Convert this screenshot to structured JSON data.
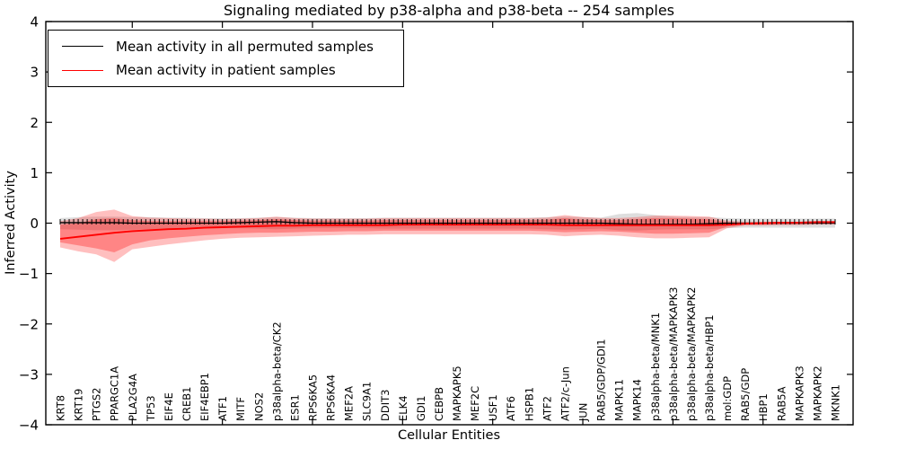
{
  "chart_data": {
    "type": "line",
    "title": "Signaling mediated by p38-alpha and p38-beta -- 254 samples",
    "xlabel": "Cellular Entities",
    "ylabel": "Inferred Activity",
    "ylim": [
      -4,
      4
    ],
    "yticks": [
      4,
      3,
      2,
      1,
      0,
      -1,
      -2,
      -3,
      -4
    ],
    "ytick_labels": [
      "4",
      "3",
      "2",
      "1",
      "0",
      "−1",
      "−2",
      "−3",
      "−4"
    ],
    "xticks_every": 5,
    "grid": false,
    "legend_position": "upper left",
    "categories": [
      "KRT8",
      "KRT19",
      "PTGS2",
      "PPARGC1A",
      "PLA2G4A",
      "TP53",
      "EIF4E",
      "CREB1",
      "EIF4EBP1",
      "ATF1",
      "MITF",
      "NOS2",
      "p38alpha-beta/CK2",
      "ESR1",
      "RPS6KA5",
      "RPS6KA4",
      "MEF2A",
      "SLC9A1",
      "DDIT3",
      "ELK4",
      "GDI1",
      "CEBPB",
      "MAPKAPK5",
      "MEF2C",
      "USF1",
      "ATF6",
      "HSPB1",
      "ATF2",
      "ATF2/c-Jun",
      "JUN",
      "RAB5/GDP/GDI1",
      "MAPK11",
      "MAPK14",
      "p38alpha-beta/MNK1",
      "p38alpha-beta/MAPKAPK3",
      "p38alpha-beta/MAPKAPK2",
      "p38alpha-beta/HBP1",
      "mol:GDP",
      "RAB5/GDP",
      "HBP1",
      "RAB5A",
      "MAPKAPK3",
      "MAPKAPK2",
      "MKNK1"
    ],
    "series": [
      {
        "name": "Mean activity in all permuted samples",
        "color": "#000000",
        "line_width": 1.3,
        "values": [
          0.01,
          0.01,
          0.01,
          0.01,
          0,
          0,
          0,
          0,
          0,
          0,
          0.01,
          0.02,
          0.03,
          0.01,
          0,
          0,
          0,
          0,
          0,
          0,
          0,
          0,
          0,
          0,
          0,
          0,
          0,
          0,
          0,
          0,
          0,
          -0.01,
          -0.02,
          -0.02,
          -0.02,
          -0.02,
          -0.01,
          0,
          0,
          0,
          0,
          0,
          0,
          0
        ]
      },
      {
        "name": "Mean activity in patient samples",
        "color": "#ff0000",
        "line_width": 1.9,
        "values": [
          -0.31,
          -0.27,
          -0.23,
          -0.19,
          -0.16,
          -0.14,
          -0.12,
          -0.11,
          -0.09,
          -0.08,
          -0.07,
          -0.06,
          -0.05,
          -0.05,
          -0.04,
          -0.04,
          -0.04,
          -0.04,
          -0.04,
          -0.03,
          -0.03,
          -0.03,
          -0.03,
          -0.03,
          -0.03,
          -0.03,
          -0.03,
          -0.03,
          -0.04,
          -0.04,
          -0.04,
          -0.04,
          -0.04,
          -0.04,
          -0.04,
          -0.04,
          -0.04,
          -0.03,
          -0.01,
          0,
          0.01,
          0.01,
          0.02,
          0.02
        ]
      }
    ],
    "bands": [
      {
        "name": "permuted-samples-range",
        "color": "rgba(0,0,0,0.13)",
        "top": [
          0.1,
          0.12,
          0.13,
          0.13,
          0.12,
          0.12,
          0.11,
          0.11,
          0.1,
          0.1,
          0.1,
          0.11,
          0.12,
          0.11,
          0.1,
          0.1,
          0.1,
          0.1,
          0.11,
          0.11,
          0.11,
          0.11,
          0.11,
          0.11,
          0.11,
          0.11,
          0.11,
          0.12,
          0.13,
          0.12,
          0.11,
          0.18,
          0.2,
          0.16,
          0.13,
          0.12,
          0.12,
          0.1,
          0.09,
          0.09,
          0.09,
          0.09,
          0.09,
          0.09
        ],
        "bottom": [
          -0.12,
          -0.13,
          -0.14,
          -0.14,
          -0.13,
          -0.12,
          -0.11,
          -0.11,
          -0.1,
          -0.1,
          -0.1,
          -0.11,
          -0.12,
          -0.11,
          -0.1,
          -0.1,
          -0.1,
          -0.1,
          -0.11,
          -0.11,
          -0.11,
          -0.11,
          -0.11,
          -0.11,
          -0.11,
          -0.11,
          -0.11,
          -0.12,
          -0.13,
          -0.12,
          -0.11,
          -0.14,
          -0.15,
          -0.13,
          -0.12,
          -0.12,
          -0.12,
          -0.1,
          -0.09,
          -0.09,
          -0.09,
          -0.09,
          -0.09,
          -0.09
        ]
      },
      {
        "name": "patient-samples-outer-band",
        "color": "rgba(255,0,0,0.25)",
        "top": [
          0.04,
          0.1,
          0.22,
          0.27,
          0.14,
          0.11,
          0.1,
          0.09,
          0.09,
          0.08,
          0.09,
          0.1,
          0.13,
          0.1,
          0.09,
          0.09,
          0.09,
          0.09,
          0.1,
          0.1,
          0.1,
          0.1,
          0.1,
          0.1,
          0.1,
          0.1,
          0.1,
          0.11,
          0.16,
          0.12,
          0.1,
          0.1,
          0.12,
          0.15,
          0.15,
          0.14,
          0.13,
          0.05,
          0.03,
          0.03,
          0.03,
          0.03,
          0.04,
          0.04
        ],
        "bottom": [
          -0.48,
          -0.56,
          -0.62,
          -0.77,
          -0.52,
          -0.47,
          -0.42,
          -0.38,
          -0.34,
          -0.31,
          -0.29,
          -0.28,
          -0.27,
          -0.26,
          -0.25,
          -0.24,
          -0.23,
          -0.23,
          -0.22,
          -0.22,
          -0.22,
          -0.22,
          -0.22,
          -0.22,
          -0.22,
          -0.22,
          -0.22,
          -0.23,
          -0.26,
          -0.24,
          -0.23,
          -0.25,
          -0.28,
          -0.3,
          -0.3,
          -0.29,
          -0.28,
          -0.1,
          -0.05,
          -0.05,
          -0.04,
          -0.04,
          -0.03,
          -0.03
        ]
      },
      {
        "name": "patient-samples-inner-band",
        "color": "rgba(255,0,0,0.30)",
        "top": [
          -0.03,
          0.0,
          0.08,
          0.1,
          0.06,
          0.04,
          0.04,
          0.04,
          0.04,
          0.04,
          0.05,
          0.06,
          0.08,
          0.06,
          0.05,
          0.05,
          0.05,
          0.05,
          0.06,
          0.06,
          0.06,
          0.06,
          0.06,
          0.06,
          0.06,
          0.06,
          0.06,
          0.07,
          0.1,
          0.07,
          0.06,
          0.06,
          0.08,
          0.1,
          0.1,
          0.09,
          0.08,
          0.02,
          0.01,
          0.01,
          0.01,
          0.02,
          0.02,
          0.02
        ],
        "bottom": [
          -0.38,
          -0.44,
          -0.5,
          -0.58,
          -0.42,
          -0.34,
          -0.3,
          -0.27,
          -0.24,
          -0.22,
          -0.2,
          -0.19,
          -0.19,
          -0.18,
          -0.17,
          -0.17,
          -0.16,
          -0.16,
          -0.15,
          -0.15,
          -0.15,
          -0.15,
          -0.15,
          -0.15,
          -0.15,
          -0.15,
          -0.15,
          -0.16,
          -0.18,
          -0.17,
          -0.16,
          -0.17,
          -0.19,
          -0.21,
          -0.21,
          -0.2,
          -0.19,
          -0.07,
          -0.03,
          -0.03,
          -0.02,
          -0.02,
          -0.01,
          -0.01
        ]
      }
    ]
  },
  "legend": {
    "entries": [
      {
        "label": "Mean activity in all permuted samples",
        "color": "#000000"
      },
      {
        "label": "Mean activity in patient samples",
        "color": "#ff0000"
      }
    ]
  }
}
